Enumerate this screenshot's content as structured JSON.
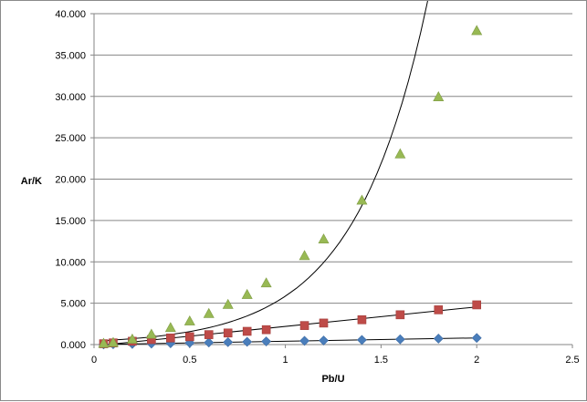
{
  "chart_data": {
    "type": "scatter",
    "title": "",
    "xlabel": "Pb/U",
    "ylabel": "Ar/K",
    "xlim": [
      0,
      2.5
    ],
    "ylim": [
      0,
      40000
    ],
    "x_ticks": [
      0,
      0.5,
      1,
      1.5,
      2,
      2.5
    ],
    "x_tick_labels": [
      "0",
      "0.5",
      "1",
      "1.5",
      "2",
      "2.5"
    ],
    "y_ticks": [
      0,
      5000,
      10000,
      15000,
      20000,
      25000,
      30000,
      35000,
      40000
    ],
    "y_tick_labels": [
      "0.000",
      "5.000",
      "10.000",
      "15.000",
      "20.000",
      "25.000",
      "30.000",
      "35.000",
      "40.000"
    ],
    "grid": "horizontal",
    "legend": "none",
    "trendline_color": "#000000",
    "series": [
      {
        "marker": "diamond",
        "color": "#4a7ebb",
        "x": [
          0.05,
          0.1,
          0.2,
          0.3,
          0.4,
          0.5,
          0.6,
          0.7,
          0.8,
          0.9,
          1.1,
          1.2,
          1.4,
          1.6,
          1.8,
          2.0
        ],
        "y": [
          20,
          40,
          80,
          120,
          160,
          200,
          250,
          290,
          330,
          380,
          450,
          490,
          560,
          640,
          720,
          800
        ],
        "trend": {
          "type": "linear",
          "x0": 0.05,
          "x1": 2.0
        }
      },
      {
        "marker": "square",
        "color": "#be4b48",
        "x": [
          0.05,
          0.1,
          0.2,
          0.3,
          0.4,
          0.5,
          0.6,
          0.7,
          0.8,
          0.9,
          1.1,
          1.2,
          1.4,
          1.6,
          1.8,
          2.0
        ],
        "y": [
          100,
          200,
          400,
          600,
          800,
          950,
          1200,
          1400,
          1600,
          1800,
          2300,
          2600,
          3000,
          3600,
          4200,
          4800
        ],
        "trend": {
          "type": "linear",
          "x0": 0.05,
          "x1": 2.0
        }
      },
      {
        "marker": "triangle",
        "color": "#98b954",
        "x": [
          0.05,
          0.1,
          0.2,
          0.3,
          0.4,
          0.5,
          0.6,
          0.7,
          0.8,
          0.9,
          1.1,
          1.2,
          1.4,
          1.6,
          1.8,
          2.0
        ],
        "y": [
          100,
          200,
          600,
          1200,
          2000,
          2800,
          3700,
          4800,
          6000,
          7400,
          10700,
          12700,
          17400,
          23000,
          29900,
          37900
        ],
        "trend": {
          "type": "exponential",
          "x0": 0.05,
          "x1": 2.0
        }
      }
    ]
  }
}
